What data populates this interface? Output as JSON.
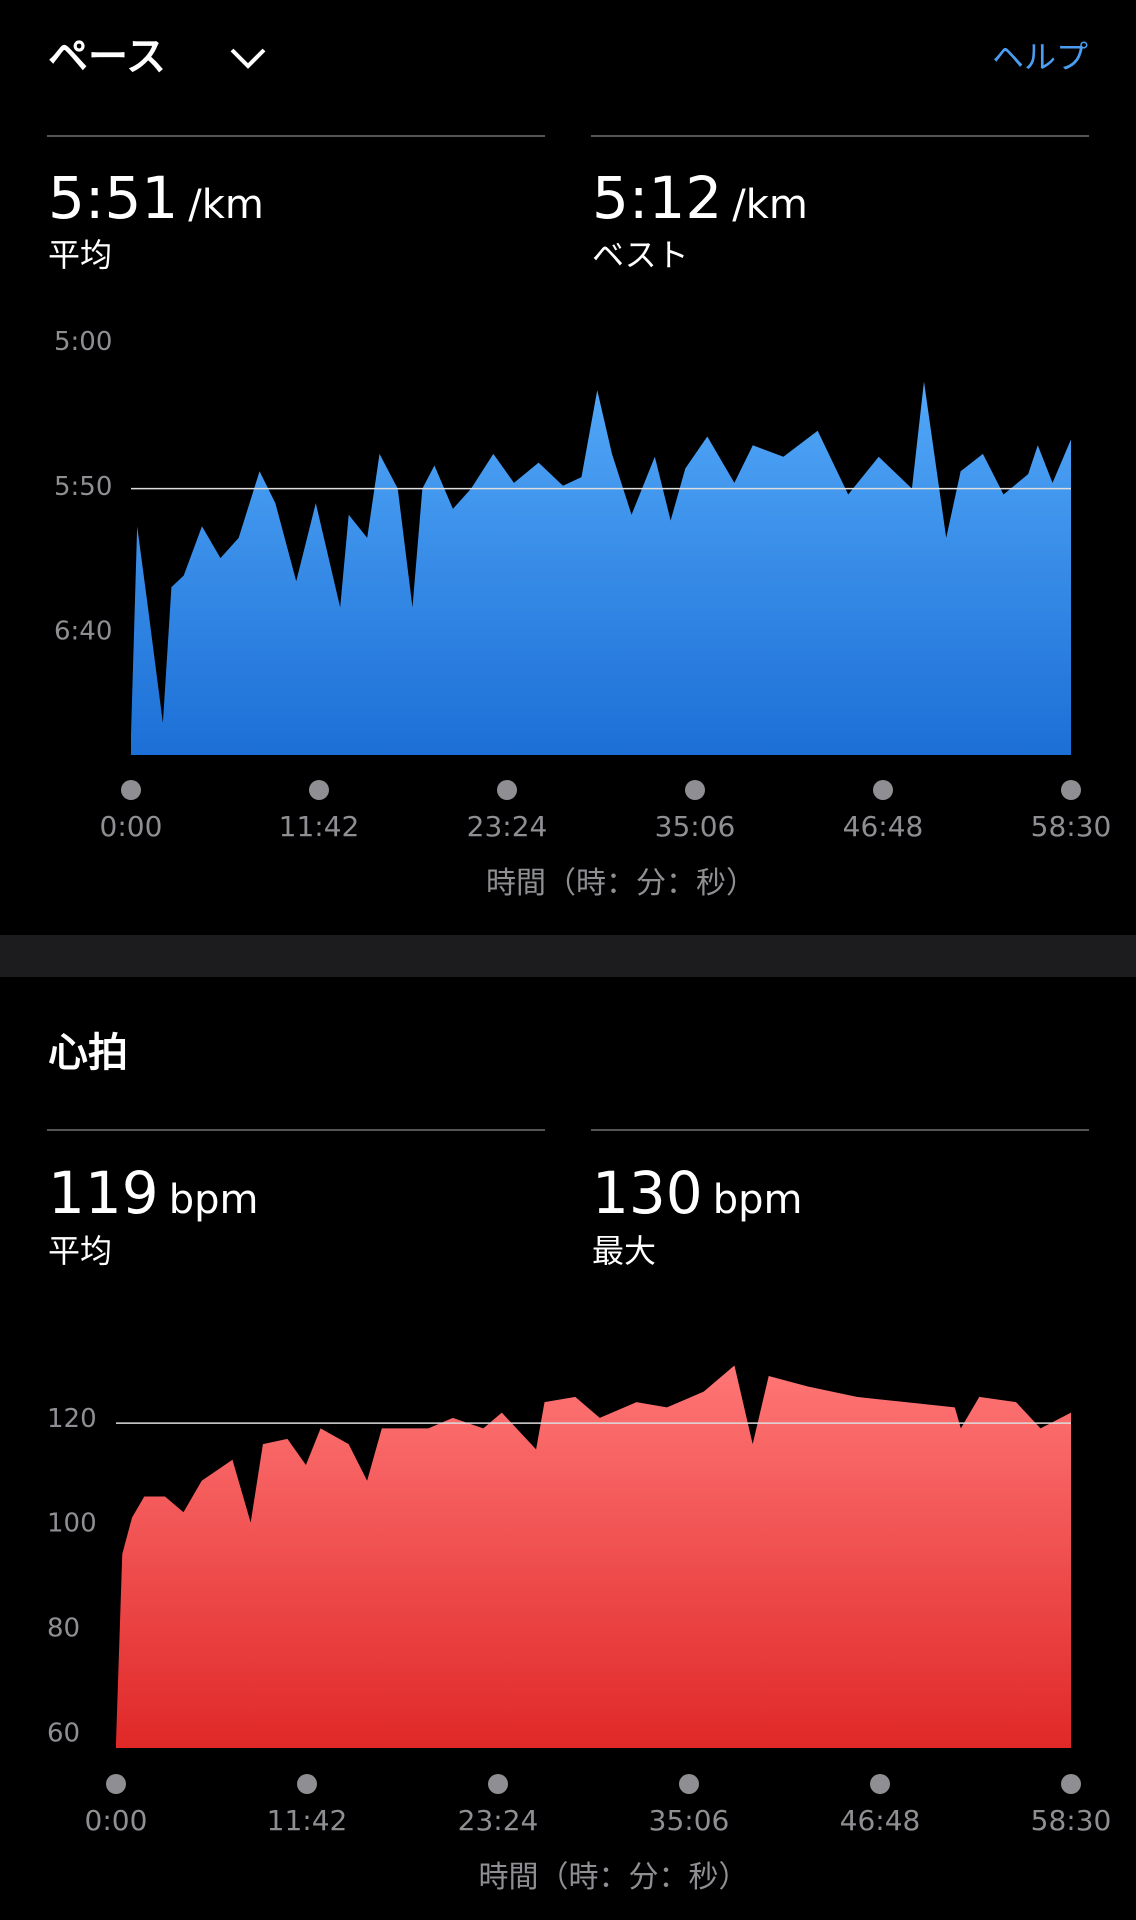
{
  "header": {
    "help": "ヘルプ"
  },
  "chart_data": [
    {
      "type": "area",
      "title": "ペース",
      "stats": [
        {
          "value": "5:51",
          "unit": "/km",
          "label": "平均"
        },
        {
          "value": "5:12",
          "unit": "/km",
          "label": "ベスト"
        }
      ],
      "x": [
        0,
        23,
        59,
        119,
        151,
        197,
        265,
        334,
        402,
        480,
        539,
        617,
        690,
        781,
        813,
        882,
        928,
        996,
        1051,
        1088,
        1133,
        1202,
        1270,
        1353,
        1430,
        1522,
        1613,
        1682,
        1741,
        1796,
        1869,
        1956,
        2015,
        2070,
        2152,
        2253,
        2322,
        2436,
        2564,
        2678,
        2792,
        2916,
        2961,
        3044,
        3098,
        3181,
        3258,
        3350,
        3386,
        3441,
        3510
      ],
      "values": [
        436,
        364,
        389,
        432,
        385,
        381,
        364,
        375,
        368,
        345,
        356,
        383,
        356,
        392,
        360,
        368,
        339,
        351,
        392,
        351,
        343,
        358,
        351,
        339,
        349,
        342,
        350,
        347,
        317,
        339,
        360,
        340,
        362,
        344,
        333,
        349,
        336,
        340,
        331,
        353,
        340,
        351,
        314,
        368,
        345,
        339,
        353,
        346,
        336,
        349,
        334
      ],
      "colors": [
        "#52a8f8",
        "#1c6fd6"
      ],
      "xlim": [
        0,
        3510
      ],
      "xticks": [
        {
          "value": 0,
          "label": "0:00"
        },
        {
          "value": 702,
          "label": "11:42"
        },
        {
          "value": 1404,
          "label": "23:24"
        },
        {
          "value": 2106,
          "label": "35:06"
        },
        {
          "value": 2808,
          "label": "46:48"
        },
        {
          "value": 3510,
          "label": "58:30"
        }
      ],
      "xlabel": "時間（時：分：秒）",
      "ylim": [
        300,
        443
      ],
      "y_inverted": true,
      "yticks": [
        {
          "value": 300,
          "label": "5:00"
        },
        {
          "value": 350,
          "label": "5:50"
        },
        {
          "value": 400,
          "label": "6:40"
        }
      ],
      "reference_line": 351
    },
    {
      "type": "area",
      "title": "心拍",
      "stats": [
        {
          "value": "119",
          "unit": "bpm",
          "label": "平均"
        },
        {
          "value": "130",
          "unit": "bpm",
          "label": "最大"
        }
      ],
      "x": [
        0,
        23,
        59,
        104,
        180,
        248,
        315,
        428,
        495,
        540,
        630,
        698,
        752,
        855,
        923,
        977,
        1058,
        1148,
        1238,
        1350,
        1418,
        1544,
        1575,
        1688,
        1778,
        1913,
        2025,
        2160,
        2273,
        2340,
        2399,
        2543,
        2723,
        2903,
        3083,
        3105,
        3173,
        3308,
        3398,
        3510
      ],
      "values": [
        58,
        94,
        101,
        105,
        105,
        102,
        108,
        112,
        100,
        115,
        116,
        111,
        118,
        115,
        108,
        118,
        118,
        118,
        120,
        118,
        121,
        114,
        123,
        124,
        120,
        123,
        122,
        125,
        130,
        115,
        128,
        126,
        124,
        123,
        122,
        118,
        124,
        123,
        118,
        121
      ],
      "colors": [
        "#ff7676",
        "#e02828"
      ],
      "xlim": [
        0,
        3510
      ],
      "xticks": [
        {
          "value": 0,
          "label": "0:00"
        },
        {
          "value": 702,
          "label": "11:42"
        },
        {
          "value": 1404,
          "label": "23:24"
        },
        {
          "value": 2106,
          "label": "35:06"
        },
        {
          "value": 2808,
          "label": "46:48"
        },
        {
          "value": 3510,
          "label": "58:30"
        }
      ],
      "xlabel": "時間（時：分：秒）",
      "ylim": [
        57,
        132
      ],
      "y_inverted": false,
      "yticks": [
        60,
        80,
        100,
        120
      ],
      "reference_line": 119
    }
  ]
}
